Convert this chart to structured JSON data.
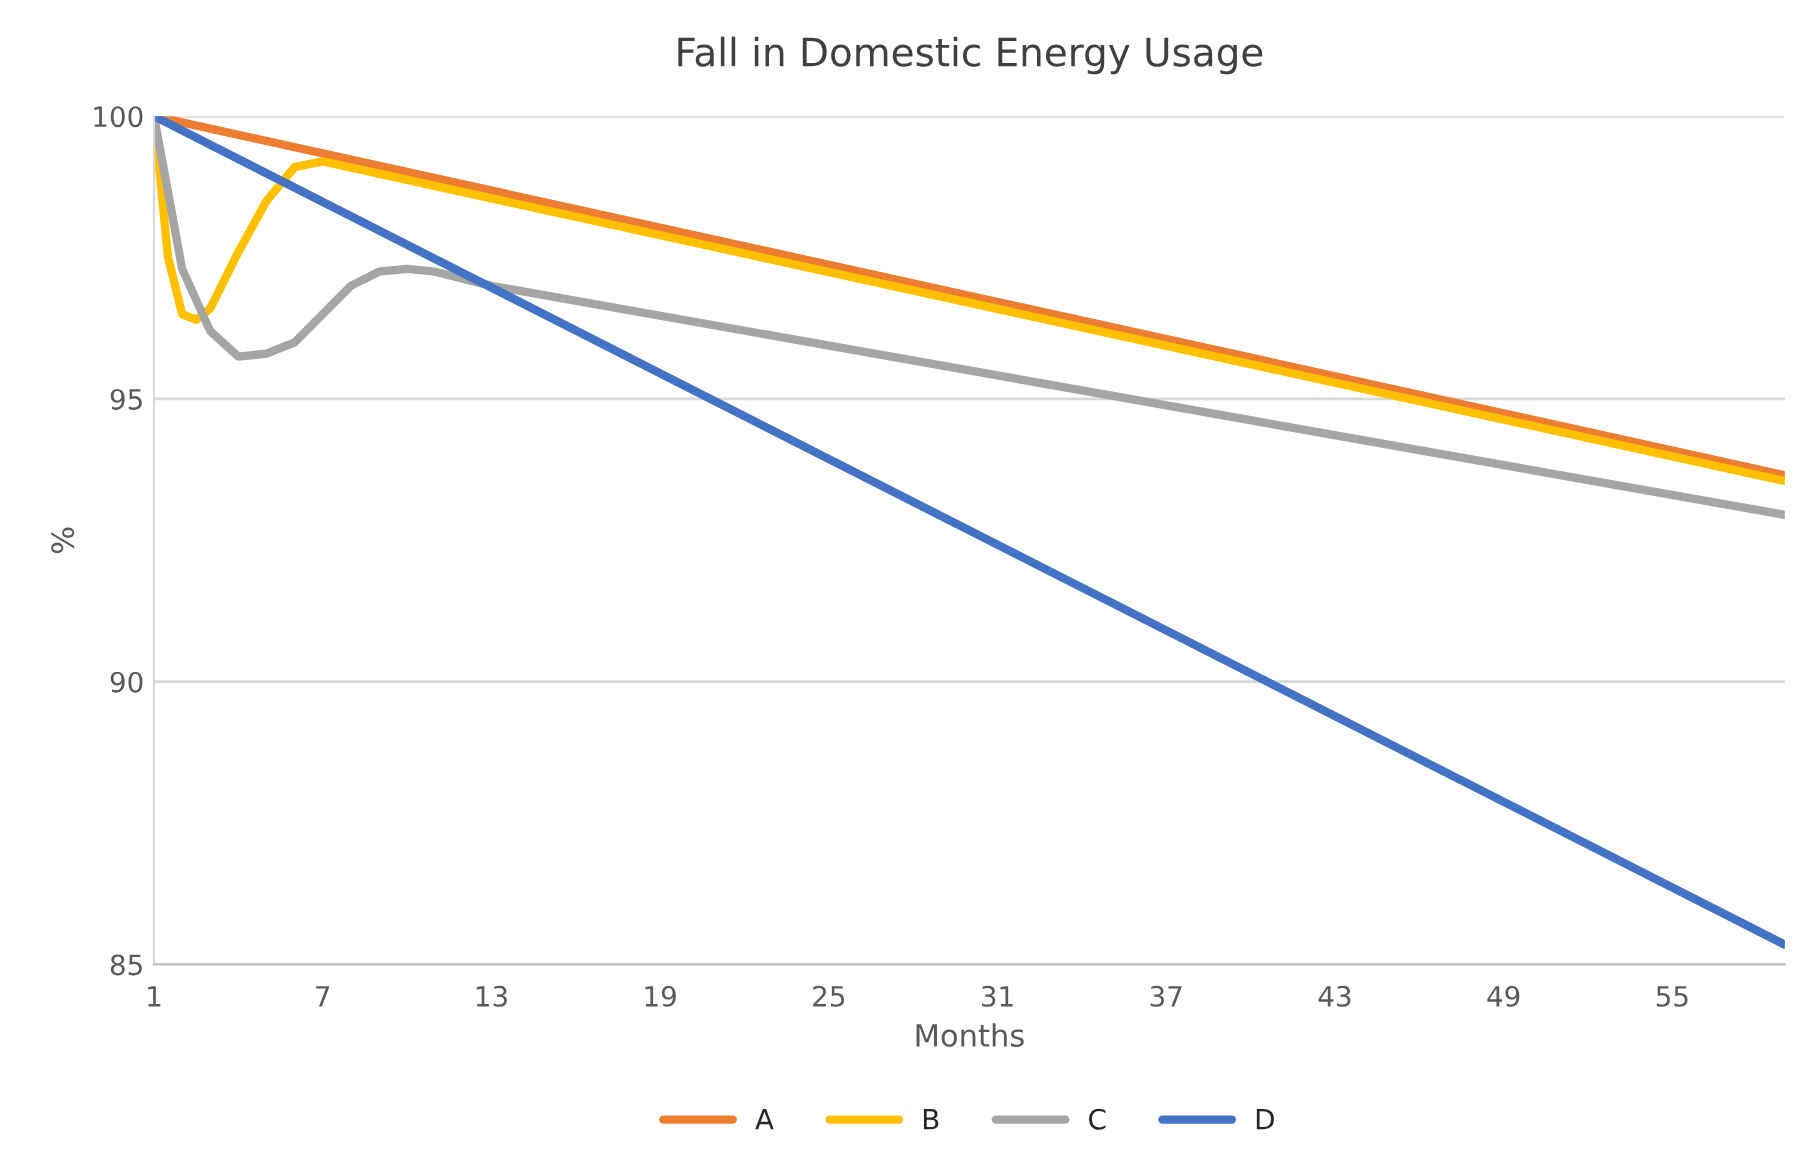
{
  "chart_data": {
    "type": "line",
    "title": "Fall in Domestic Energy Usage",
    "xlabel": "Months",
    "ylabel": "%",
    "xlim": [
      1,
      59
    ],
    "xticks": [
      1,
      7,
      13,
      19,
      25,
      31,
      37,
      43,
      49,
      55
    ],
    "ylim": [
      85,
      100
    ],
    "yticks": [
      85,
      90,
      95,
      100
    ],
    "grid": "y",
    "legend": "bottom",
    "series": [
      {
        "name": "A",
        "color": "#ed7d31",
        "x": [
          1,
          59
        ],
        "values": [
          100,
          93.65
        ]
      },
      {
        "name": "B",
        "color": "#ffc000",
        "x": [
          1,
          1.5,
          2,
          2.5,
          3,
          4,
          5,
          6,
          7,
          59
        ],
        "values": [
          100,
          97.5,
          96.5,
          96.4,
          96.6,
          97.6,
          98.5,
          99.1,
          99.2,
          93.55
        ]
      },
      {
        "name": "C",
        "color": "#a5a5a5",
        "x": [
          1,
          2,
          3,
          4,
          5,
          6,
          7,
          8,
          9,
          10,
          11,
          13,
          59
        ],
        "values": [
          100,
          97.3,
          96.2,
          95.75,
          95.8,
          96.0,
          96.5,
          97.0,
          97.25,
          97.3,
          97.25,
          97.0,
          92.95
        ]
      },
      {
        "name": "D",
        "color": "#4472c4",
        "x": [
          1,
          59
        ],
        "values": [
          100,
          85.35
        ]
      }
    ]
  }
}
